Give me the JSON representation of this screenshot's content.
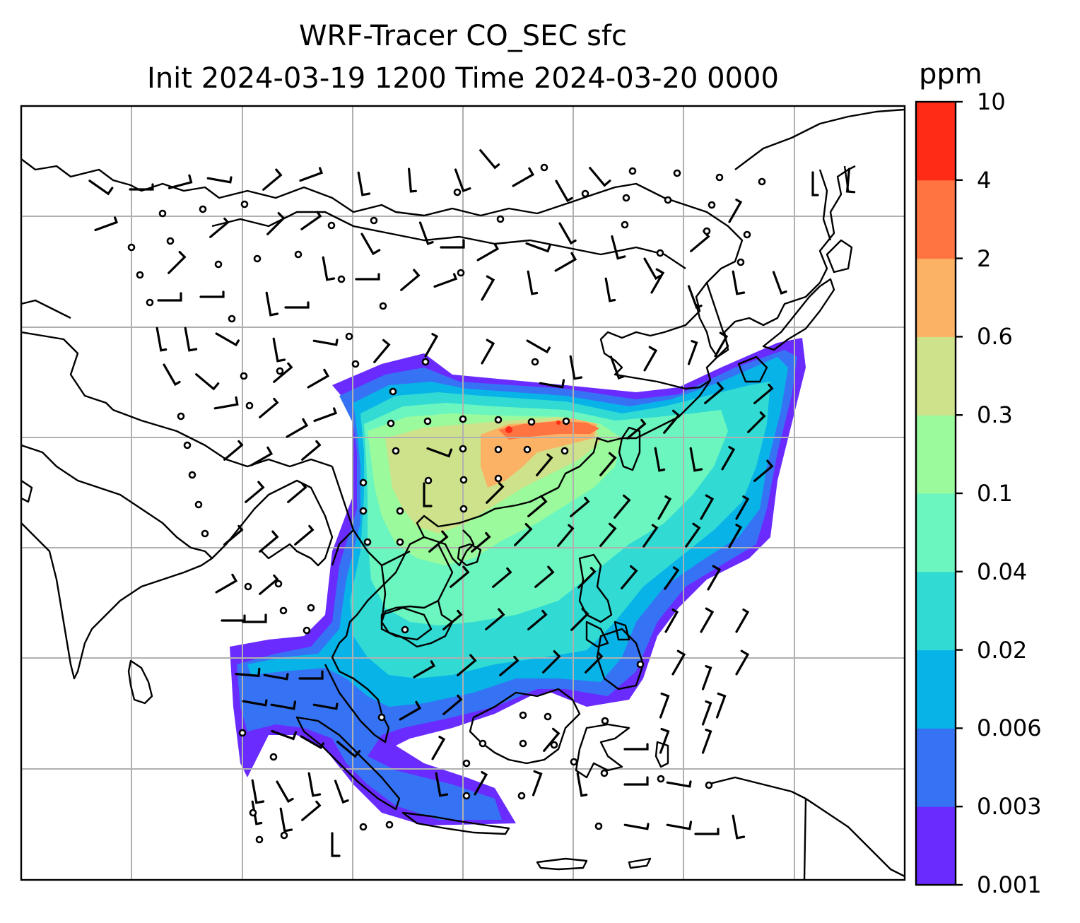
{
  "title": {
    "line1": "WRF-Tracer CO_SEC sfc",
    "line2": "Init 2024-03-19 1200 Time 2024-03-20 0000"
  },
  "colorbar": {
    "unit": "ppm",
    "levels": [
      "0.001",
      "0.003",
      "0.006",
      "0.02",
      "0.04",
      "0.1",
      "0.3",
      "0.6",
      "2",
      "4",
      "10"
    ],
    "colors": [
      "#6a2bff",
      "#3573f4",
      "#08b3e8",
      "#31dbd4",
      "#6cf6bf",
      "#9afa9c",
      "#cde28a",
      "#fcb264",
      "#ff7440",
      "#ff2b17"
    ]
  },
  "map": {
    "frame_color": "#000000",
    "gridline_color": "#b0b0b0",
    "coastline_color": "#000000",
    "wind_barb_color": "#000000"
  }
}
